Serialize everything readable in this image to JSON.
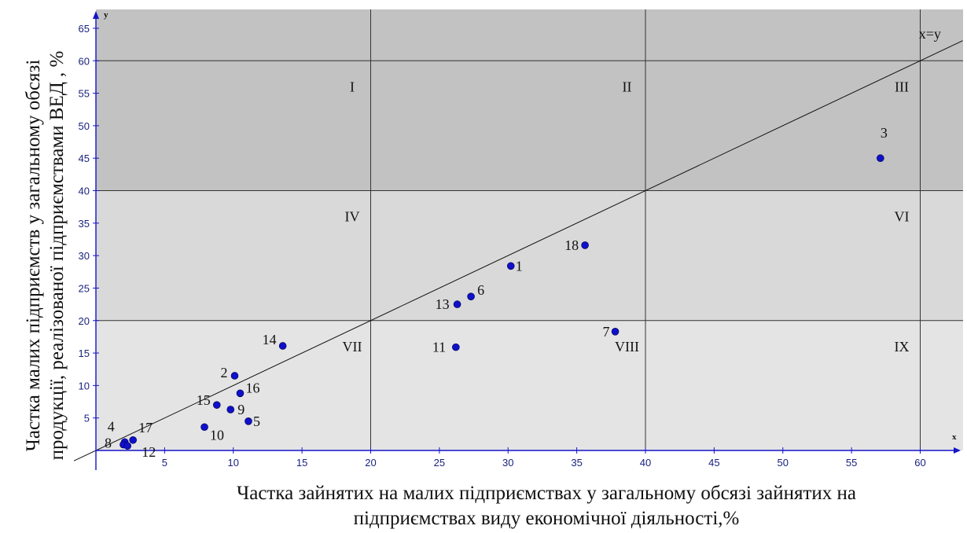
{
  "chart_data": {
    "type": "scatter",
    "xlabel_lines": [
      "Частка зайнятих на малих підприємствах у загальному обсязі зайнятих на",
      "підприємствах виду економічної діяльності,%"
    ],
    "ylabel_lines": [
      "Частка малих підприємств у загальному обсязі",
      "продукції, реалізованої підприємствами ВЕД , %"
    ],
    "x_axis_name": "x",
    "y_axis_name": "y",
    "xlim": [
      0,
      62
    ],
    "ylim": [
      0,
      67
    ],
    "x_ticks": [
      5,
      10,
      15,
      20,
      25,
      30,
      35,
      40,
      45,
      50,
      55,
      60
    ],
    "y_ticks": [
      5,
      10,
      15,
      20,
      25,
      30,
      35,
      40,
      45,
      50,
      55,
      60,
      65
    ],
    "grid": false,
    "region_boundaries": {
      "x": [
        20,
        40,
        60
      ],
      "y": [
        20,
        40,
        60
      ]
    },
    "reference_line": {
      "label": "x=y",
      "slope": 1,
      "intercept": 0
    },
    "region_labels": [
      {
        "label": "I",
        "x": 19,
        "y": 56
      },
      {
        "label": "II",
        "x": 39,
        "y": 56
      },
      {
        "label": "III",
        "x": 59,
        "y": 56
      },
      {
        "label": "IV",
        "x": 19,
        "y": 36
      },
      {
        "label": "VI",
        "x": 59,
        "y": 36
      },
      {
        "label": "VII",
        "x": 19,
        "y": 16
      },
      {
        "label": "VIII",
        "x": 39,
        "y": 16
      },
      {
        "label": "IX",
        "x": 59,
        "y": 16
      }
    ],
    "points": [
      {
        "label": "1",
        "x": 30.2,
        "y": 28.4,
        "label_dx": 6,
        "label_dy": 6
      },
      {
        "label": "2",
        "x": 10.1,
        "y": 11.5,
        "label_dx": -18,
        "label_dy": 2
      },
      {
        "label": "3",
        "x": 57.1,
        "y": 45.0,
        "label_dx": 0,
        "label_dy": -26
      },
      {
        "label": "4",
        "x": 2.1,
        "y": 1.3,
        "label_dx": -22,
        "label_dy": -14
      },
      {
        "label": "5",
        "x": 11.1,
        "y": 4.5,
        "label_dx": 6,
        "label_dy": 6
      },
      {
        "label": "6",
        "x": 27.3,
        "y": 23.7,
        "label_dx": 8,
        "label_dy": -2
      },
      {
        "label": "7",
        "x": 37.8,
        "y": 18.3,
        "label_dx": -16,
        "label_dy": 6
      },
      {
        "label": "8",
        "x": 2.0,
        "y": 0.9,
        "label_dx": -24,
        "label_dy": 4
      },
      {
        "label": "9",
        "x": 9.8,
        "y": 6.3,
        "label_dx": 9,
        "label_dy": 6
      },
      {
        "label": "10",
        "x": 7.9,
        "y": 3.6,
        "label_dx": 7,
        "label_dy": 16
      },
      {
        "label": "11",
        "x": 26.2,
        "y": 15.9,
        "label_dx": -30,
        "label_dy": 6
      },
      {
        "label": "12",
        "x": 2.3,
        "y": 0.7,
        "label_dx": 18,
        "label_dy": 14
      },
      {
        "label": "13",
        "x": 26.3,
        "y": 22.5,
        "label_dx": -28,
        "label_dy": 6
      },
      {
        "label": "14",
        "x": 13.6,
        "y": 16.1,
        "label_dx": -26,
        "label_dy": -2
      },
      {
        "label": "15",
        "x": 8.8,
        "y": 7.0,
        "label_dx": -26,
        "label_dy": 0
      },
      {
        "label": "16",
        "x": 10.5,
        "y": 8.8,
        "label_dx": 7,
        "label_dy": -1
      },
      {
        "label": "17",
        "x": 2.7,
        "y": 1.6,
        "label_dx": 7,
        "label_dy": -10
      },
      {
        "label": "18",
        "x": 35.6,
        "y": 31.6,
        "label_dx": -26,
        "label_dy": 6
      }
    ]
  },
  "colors": {
    "band_top": "#c2c2c2",
    "band_mid": "#d9d9d9",
    "band_low": "#e4e4e4",
    "axis": "#1515c8",
    "point": "#1010c8",
    "line": "#111111"
  }
}
